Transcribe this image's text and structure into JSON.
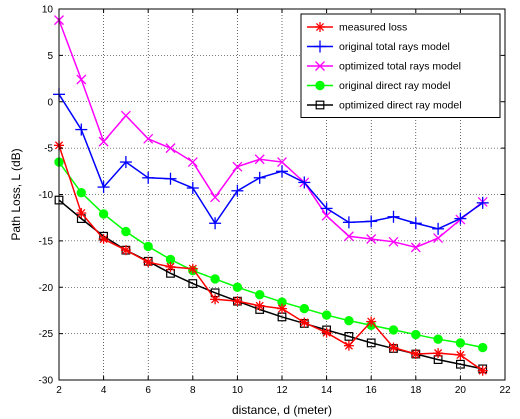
{
  "chart_data": {
    "type": "line",
    "xlabel": "distance, d (meter)",
    "ylabel": "Path Loss, L (dB)",
    "xlim": [
      2,
      22
    ],
    "ylim": [
      -30,
      10
    ],
    "xticks": [
      2,
      4,
      6,
      8,
      10,
      12,
      14,
      16,
      18,
      20,
      22
    ],
    "yticks": [
      -30,
      -25,
      -20,
      -15,
      -10,
      -5,
      0,
      5,
      10
    ],
    "grid": true,
    "legend_position": "top-right",
    "x": [
      2,
      3,
      4,
      5,
      6,
      7,
      8,
      9,
      10,
      11,
      12,
      13,
      14,
      15,
      16,
      17,
      18,
      19,
      20,
      21
    ],
    "series": [
      {
        "name": "measured loss",
        "color": "#ff0000",
        "marker": "asterisk",
        "values": [
          -4.7,
          -12.0,
          -14.8,
          -16.0,
          -17.3,
          -17.8,
          -18.0,
          -21.3,
          -21.5,
          -22.0,
          -22.3,
          -23.8,
          -24.9,
          -26.3,
          -23.7,
          -26.5,
          -27.2,
          -27.1,
          -27.3,
          -29.0
        ]
      },
      {
        "name": "original total rays model",
        "color": "#0000ff",
        "marker": "plus",
        "values": [
          0.8,
          -3.0,
          -9.2,
          -6.5,
          -8.2,
          -8.3,
          -9.3,
          -13.1,
          -9.6,
          -8.2,
          -7.5,
          -8.7,
          -11.5,
          -13.0,
          -12.9,
          -12.4,
          -13.1,
          -13.7,
          -12.6,
          -10.9
        ]
      },
      {
        "name": "optimized total rays model",
        "color": "#ff00ff",
        "marker": "x",
        "values": [
          8.8,
          2.4,
          -4.3,
          -1.5,
          -4.0,
          -5.0,
          -6.5,
          -10.3,
          -7.0,
          -6.2,
          -6.5,
          -8.7,
          -12.3,
          -14.5,
          -14.8,
          -15.1,
          -15.7,
          -14.7,
          -12.7,
          -10.8
        ]
      },
      {
        "name": "original direct ray model",
        "color": "#00ff00",
        "marker": "circle",
        "values": [
          -6.5,
          -9.8,
          -12.1,
          -14.0,
          -15.6,
          -17.0,
          -18.2,
          -19.1,
          -20.0,
          -20.8,
          -21.6,
          -22.3,
          -23.0,
          -23.6,
          -24.1,
          -24.6,
          -25.1,
          -25.6,
          -26.0,
          -26.5
        ]
      },
      {
        "name": "optimized direct ray model",
        "color": "#000000",
        "marker": "square",
        "values": [
          -10.6,
          -12.6,
          -14.5,
          -16.0,
          -17.2,
          -18.5,
          -19.6,
          -20.6,
          -21.5,
          -22.4,
          -23.2,
          -23.9,
          -24.6,
          -25.3,
          -26.0,
          -26.6,
          -27.2,
          -27.8,
          -28.3,
          -28.8
        ]
      }
    ]
  }
}
